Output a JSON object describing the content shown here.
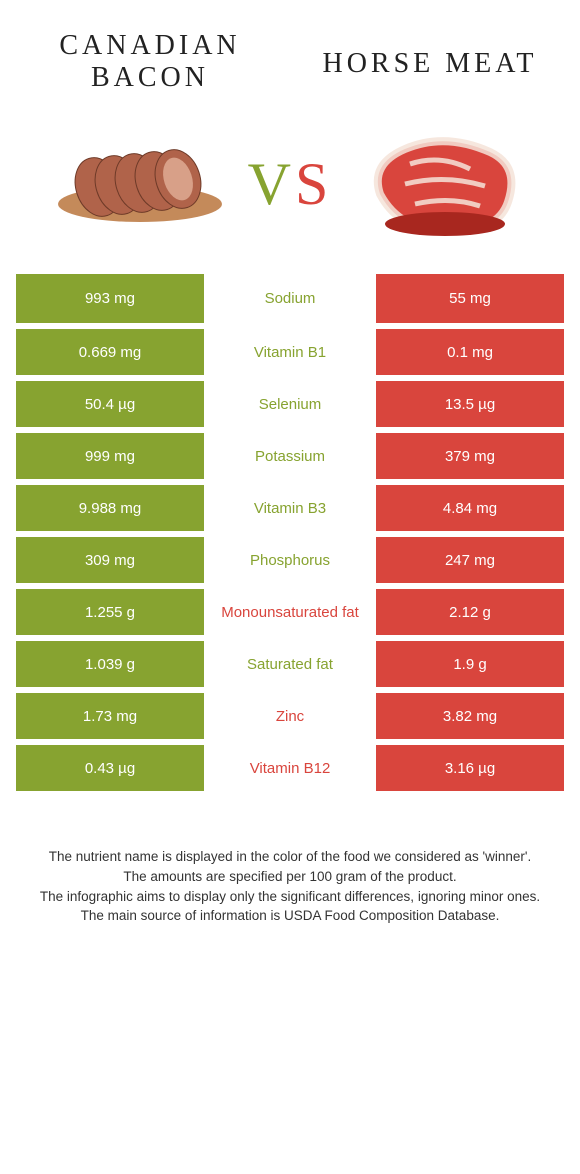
{
  "header": {
    "left_title": "CANADIAN BACON",
    "right_title": "HORSE MEAT",
    "vs": "VS"
  },
  "colors": {
    "food_a": "#87a330",
    "food_b": "#d9453d",
    "vs_v": "#87a330",
    "vs_s": "#d9453d",
    "nutrient_a": "#87a330",
    "nutrient_b": "#d9453d",
    "cell_text": "#ffffff",
    "background": "#ffffff"
  },
  "nutrients": [
    {
      "name": "Sodium",
      "left": "993 mg",
      "right": "55 mg",
      "winner": "a"
    },
    {
      "name": "Vitamin B1",
      "left": "0.669 mg",
      "right": "0.1 mg",
      "winner": "a"
    },
    {
      "name": "Selenium",
      "left": "50.4 µg",
      "right": "13.5 µg",
      "winner": "a"
    },
    {
      "name": "Potassium",
      "left": "999 mg",
      "right": "379 mg",
      "winner": "a"
    },
    {
      "name": "Vitamin B3",
      "left": "9.988 mg",
      "right": "4.84 mg",
      "winner": "a"
    },
    {
      "name": "Phosphorus",
      "left": "309 mg",
      "right": "247 mg",
      "winner": "a"
    },
    {
      "name": "Monounsaturated fat",
      "left": "1.255 g",
      "right": "2.12 g",
      "winner": "b"
    },
    {
      "name": "Saturated fat",
      "left": "1.039 g",
      "right": "1.9 g",
      "winner": "a"
    },
    {
      "name": "Zinc",
      "left": "1.73 mg",
      "right": "3.82 mg",
      "winner": "b"
    },
    {
      "name": "Vitamin B12",
      "left": "0.43 µg",
      "right": "3.16 µg",
      "winner": "b"
    }
  ],
  "footer": {
    "line1": "The nutrient name is displayed in the color of the food we considered as 'winner'.",
    "line2": "The amounts are specified per 100 gram of the product.",
    "line3": "The infographic aims to display only the significant differences, ignoring minor ones.",
    "line4": "The main source of information is USDA Food Composition Database."
  }
}
